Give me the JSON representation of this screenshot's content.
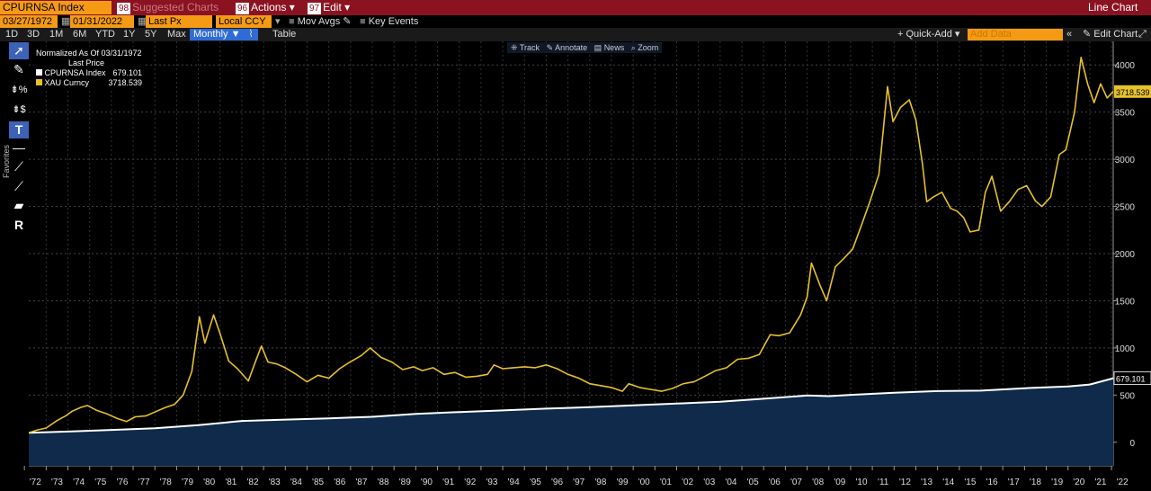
{
  "toolbar": {
    "ticker": "CPURNSA Index",
    "suggested_num": "98",
    "suggested_label": "Suggested Charts",
    "actions_num": "96",
    "actions_label": "Actions ▾",
    "edit_num": "97",
    "edit_label": "Edit ▾",
    "chart_type": "Line Chart"
  },
  "params": {
    "start_date": "03/27/1972",
    "end_date": "01/31/2022",
    "field": "Last Px",
    "currency": "Local CCY",
    "mov_avgs": "Mov Avgs",
    "key_events": "Key Events"
  },
  "periods": [
    "1D",
    "3D",
    "1M",
    "6M",
    "YTD",
    "1Y",
    "5Y",
    "Max"
  ],
  "frequency": "Monthly ▼",
  "table_label": "Table",
  "quick_add": "+ Quick-Add ▾",
  "add_data_placeholder": "Add Data",
  "edit_chart": "Edit Chart",
  "overlay_tools": {
    "track": "Track",
    "annotate": "Annotate",
    "news": "News",
    "zoom": "Zoom"
  },
  "favorites_label": "Favorites",
  "legend": {
    "normalized": "Normalized As Of 03/31/1972",
    "last_price": "Last Price",
    "items": [
      {
        "name": "CPURNSA Index",
        "value": "679.101",
        "color": "#ffffff"
      },
      {
        "name": "XAU Curncy",
        "value": "3718.539",
        "color": "#e6c12a"
      }
    ]
  },
  "chart_data": {
    "type": "line",
    "x_range": [
      1972.2,
      2022.08
    ],
    "ylim": [
      -250,
      4250
    ],
    "y_ticks": [
      0,
      500,
      1000,
      1500,
      2000,
      2500,
      3000,
      3500,
      4000
    ],
    "x_tick_labels": [
      "'72",
      "'73",
      "'74",
      "'75",
      "'76",
      "'77",
      "'78",
      "'79",
      "'80",
      "'81",
      "'82",
      "'83",
      "'84",
      "'85",
      "'86",
      "'87",
      "'88",
      "'89",
      "'90",
      "'91",
      "'92",
      "'93",
      "'94",
      "'95",
      "'96",
      "'97",
      "'98",
      "'99",
      "'00",
      "'01",
      "'02",
      "'03",
      "'04",
      "'05",
      "'06",
      "'07",
      "'08",
      "'09",
      "'10",
      "'11",
      "'12",
      "'13",
      "'14",
      "'15",
      "'16",
      "'17",
      "'18",
      "'19",
      "'20",
      "'21",
      "'22"
    ],
    "grid": true,
    "series": [
      {
        "name": "CPURNSA Index",
        "color": "#ffffff",
        "fill": "#0f2a4a",
        "last_value": "679.101",
        "points": [
          [
            1972.2,
            100
          ],
          [
            1974,
            113
          ],
          [
            1976,
            130
          ],
          [
            1978,
            148
          ],
          [
            1980,
            181
          ],
          [
            1982,
            226
          ],
          [
            1984,
            240
          ],
          [
            1986,
            253
          ],
          [
            1988,
            270
          ],
          [
            1990,
            300
          ],
          [
            1992,
            320
          ],
          [
            1994,
            337
          ],
          [
            1996,
            356
          ],
          [
            1998,
            372
          ],
          [
            2000,
            392
          ],
          [
            2002,
            410
          ],
          [
            2004,
            430
          ],
          [
            2006,
            461
          ],
          [
            2008,
            496
          ],
          [
            2009,
            489
          ],
          [
            2010,
            502
          ],
          [
            2012,
            525
          ],
          [
            2014,
            542
          ],
          [
            2016,
            547
          ],
          [
            2018,
            573
          ],
          [
            2020,
            592
          ],
          [
            2021,
            612
          ],
          [
            2022.08,
            679
          ]
        ]
      },
      {
        "name": "XAU Curncy",
        "color": "#e6c12a",
        "last_value": "3718.539",
        "points": [
          [
            1972.2,
            100
          ],
          [
            1972.6,
            130
          ],
          [
            1973,
            150
          ],
          [
            1973.5,
            230
          ],
          [
            1973.9,
            280
          ],
          [
            1974.2,
            330
          ],
          [
            1974.6,
            370
          ],
          [
            1974.9,
            390
          ],
          [
            1975.3,
            340
          ],
          [
            1975.8,
            300
          ],
          [
            1976.3,
            250
          ],
          [
            1976.7,
            220
          ],
          [
            1977.1,
            270
          ],
          [
            1977.6,
            280
          ],
          [
            1978,
            320
          ],
          [
            1978.5,
            370
          ],
          [
            1978.9,
            400
          ],
          [
            1979.3,
            500
          ],
          [
            1979.7,
            750
          ],
          [
            1980.05,
            1330
          ],
          [
            1980.3,
            1050
          ],
          [
            1980.7,
            1350
          ],
          [
            1981,
            1150
          ],
          [
            1981.4,
            860
          ],
          [
            1981.8,
            780
          ],
          [
            1982.3,
            650
          ],
          [
            1982.6,
            840
          ],
          [
            1982.9,
            1020
          ],
          [
            1983.2,
            850
          ],
          [
            1983.6,
            830
          ],
          [
            1984,
            790
          ],
          [
            1984.5,
            720
          ],
          [
            1985,
            640
          ],
          [
            1985.5,
            710
          ],
          [
            1986,
            680
          ],
          [
            1986.5,
            780
          ],
          [
            1986.9,
            840
          ],
          [
            1987.5,
            920
          ],
          [
            1987.9,
            1000
          ],
          [
            1988.4,
            900
          ],
          [
            1988.9,
            850
          ],
          [
            1989.4,
            770
          ],
          [
            1989.9,
            800
          ],
          [
            1990.3,
            760
          ],
          [
            1990.8,
            790
          ],
          [
            1991.3,
            720
          ],
          [
            1991.8,
            740
          ],
          [
            1992.3,
            690
          ],
          [
            1992.8,
            700
          ],
          [
            1993.3,
            720
          ],
          [
            1993.6,
            820
          ],
          [
            1994,
            780
          ],
          [
            1994.5,
            790
          ],
          [
            1995,
            800
          ],
          [
            1995.5,
            790
          ],
          [
            1996,
            820
          ],
          [
            1996.5,
            780
          ],
          [
            1997,
            720
          ],
          [
            1997.5,
            680
          ],
          [
            1998,
            620
          ],
          [
            1998.5,
            600
          ],
          [
            1999,
            580
          ],
          [
            1999.5,
            540
          ],
          [
            1999.8,
            620
          ],
          [
            2000.3,
            580
          ],
          [
            2000.8,
            560
          ],
          [
            2001.3,
            540
          ],
          [
            2001.8,
            570
          ],
          [
            2002.3,
            620
          ],
          [
            2002.8,
            640
          ],
          [
            2003.3,
            700
          ],
          [
            2003.8,
            760
          ],
          [
            2004.3,
            790
          ],
          [
            2004.8,
            880
          ],
          [
            2005.3,
            890
          ],
          [
            2005.8,
            930
          ],
          [
            2006.3,
            1140
          ],
          [
            2006.7,
            1130
          ],
          [
            2007.2,
            1160
          ],
          [
            2007.7,
            1350
          ],
          [
            2008,
            1540
          ],
          [
            2008.2,
            1900
          ],
          [
            2008.6,
            1660
          ],
          [
            2008.9,
            1500
          ],
          [
            2009.3,
            1860
          ],
          [
            2009.7,
            1950
          ],
          [
            2010.1,
            2050
          ],
          [
            2010.5,
            2300
          ],
          [
            2010.9,
            2560
          ],
          [
            2011.3,
            2840
          ],
          [
            2011.7,
            3770
          ],
          [
            2011.95,
            3400
          ],
          [
            2012.3,
            3550
          ],
          [
            2012.7,
            3630
          ],
          [
            2013.0,
            3420
          ],
          [
            2013.3,
            2960
          ],
          [
            2013.5,
            2550
          ],
          [
            2013.8,
            2600
          ],
          [
            2014.2,
            2650
          ],
          [
            2014.6,
            2480
          ],
          [
            2014.9,
            2450
          ],
          [
            2015.2,
            2380
          ],
          [
            2015.5,
            2230
          ],
          [
            2015.9,
            2250
          ],
          [
            2016.2,
            2650
          ],
          [
            2016.5,
            2820
          ],
          [
            2016.9,
            2450
          ],
          [
            2017.3,
            2550
          ],
          [
            2017.7,
            2680
          ],
          [
            2018.1,
            2720
          ],
          [
            2018.5,
            2560
          ],
          [
            2018.8,
            2500
          ],
          [
            2019.2,
            2600
          ],
          [
            2019.6,
            3050
          ],
          [
            2019.9,
            3100
          ],
          [
            2020.3,
            3500
          ],
          [
            2020.6,
            4080
          ],
          [
            2020.9,
            3800
          ],
          [
            2021.2,
            3600
          ],
          [
            2021.5,
            3800
          ],
          [
            2021.8,
            3650
          ],
          [
            2022.08,
            3718
          ]
        ]
      }
    ]
  }
}
